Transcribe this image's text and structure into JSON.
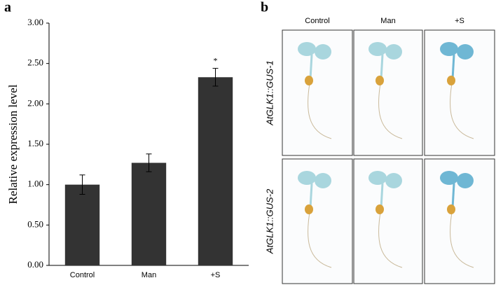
{
  "chart_data": {
    "type": "bar",
    "panel_label": "a",
    "ylabel": "Relative expression level",
    "categories": [
      "Control",
      "Man",
      "+S"
    ],
    "values": [
      1.0,
      1.27,
      2.33
    ],
    "errors": [
      0.12,
      0.11,
      0.11
    ],
    "color": "#333333",
    "annotation": "*",
    "ylim": [
      0,
      3
    ],
    "yticks": [
      {
        "value": 0,
        "label": "0.00"
      },
      {
        "value": 0.5,
        "label": "0.50"
      },
      {
        "value": 1,
        "label": "1.00"
      },
      {
        "value": 1.5,
        "label": "1.50"
      },
      {
        "value": 2,
        "label": "2.00"
      },
      {
        "value": 2.5,
        "label": "2.50"
      },
      {
        "value": 3,
        "label": "3.00"
      }
    ]
  },
  "panel_b": {
    "label": "b",
    "columns": [
      "Control",
      "Man",
      "+S"
    ],
    "rows": [
      "AtGLK1::GUS-1",
      "AtGLK1::GUS-2"
    ]
  }
}
